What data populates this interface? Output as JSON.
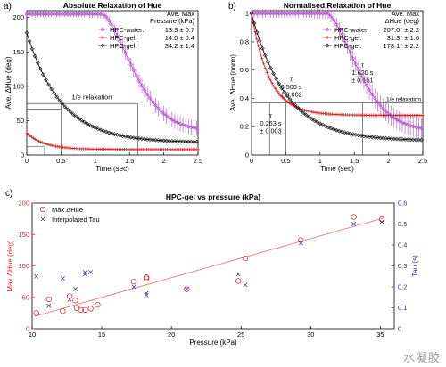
{
  "watermark": "水凝胶",
  "colors": {
    "water": "#b24bcc",
    "gel1": "#e02020",
    "gel2": "#111111",
    "tau_blue": "#2e2ea8",
    "fit_red": "#f07a7a"
  },
  "chart_data": [
    {
      "panel": "a)",
      "type": "line",
      "title": "Absolute Relaxation of Hue",
      "xlabel": "Time (sec)",
      "ylabel": "Ave. ΔHue (deg)",
      "xlim": [
        0,
        2.5
      ],
      "ylim": [
        0,
        210
      ],
      "xticks": [
        0,
        0.5,
        1,
        1.5,
        2,
        2.5
      ],
      "yticks": [
        0,
        50,
        100,
        150,
        200
      ],
      "legend_header": [
        "Ave. Max",
        "Pressure (kPa)"
      ],
      "annotation": "1/e relaxation",
      "legend_position": "top-right",
      "series": [
        {
          "name": "HPC-water:",
          "legend_value": "13.3 ± 0.7",
          "color": "#b24bcc",
          "marker": "diamond",
          "start": 205,
          "amp": 170,
          "floor": 35,
          "delay": 1.1,
          "tau": 0.6,
          "err": 8
        },
        {
          "name": "HPC-gel:",
          "legend_value": "14.0 ± 0.4",
          "color": "#e02020",
          "marker": "plus",
          "start": 32,
          "amp": 24,
          "floor": 8,
          "delay": 0,
          "tau": 0.26,
          "err": 1.5
        },
        {
          "name": "HPC-gel:",
          "legend_value": "34.2 ± 1.4",
          "color": "#111111",
          "marker": "diamond",
          "start": 178,
          "amp": 160,
          "floor": 18,
          "delay": 0,
          "tau": 0.5,
          "err": 3
        }
      ],
      "guides": {
        "one_over_e_y": [
          75,
          67,
          12
        ],
        "taus": [
          0.5,
          1.62
        ]
      }
    },
    {
      "panel": "b)",
      "type": "line",
      "title": "Normalised Relaxation of Hue",
      "xlabel": "Time (sec)",
      "ylabel": "Ave. ΔHue (norm)",
      "xlim": [
        0,
        2.5
      ],
      "ylim": [
        0,
        1.02
      ],
      "xticks": [
        0,
        0.5,
        1,
        1.5,
        2,
        2.5
      ],
      "yticks": [
        0,
        0.2,
        0.4,
        0.6,
        0.8,
        1
      ],
      "legend_header": [
        "Ave. Max",
        "ΔHue (deg)"
      ],
      "annotation": "1/e relaxation",
      "legend_position": "top-right",
      "series": [
        {
          "name": "HPC-water:",
          "legend_value": "207.0° ± 2.2",
          "color": "#b24bcc",
          "marker": "diamond",
          "start": 1,
          "amp": 0.83,
          "floor": 0.17,
          "delay": 1.1,
          "tau": 0.6,
          "err": 0.05
        },
        {
          "name": "HPC-gel:",
          "legend_value": "31.3° ± 1.6",
          "color": "#e02020",
          "marker": "plus",
          "start": 1,
          "amp": 0.72,
          "floor": 0.28,
          "delay": 0,
          "tau": 0.26,
          "err": 0.04
        },
        {
          "name": "HPC-gel:",
          "legend_value": "178.1° ± 2.2",
          "color": "#111111",
          "marker": "diamond",
          "start": 1,
          "amp": 0.9,
          "floor": 0.1,
          "delay": 0,
          "tau": 0.5,
          "err": 0.02
        }
      ],
      "tau_labels": [
        {
          "text": [
            "τ",
            "0.263 s",
            "± 0.003"
          ],
          "tau": 0.263
        },
        {
          "text": [
            "τ",
            "0.500 s",
            "± 0.002"
          ],
          "tau": 0.5
        },
        {
          "text": [
            "τ",
            "1.620 s",
            "± 0.161"
          ],
          "tau": 1.62
        }
      ],
      "one_over_e": 0.368
    },
    {
      "panel": "c)",
      "type": "scatter",
      "title": "HPC-gel vs pressure (kPa)",
      "xlabel": "Pressure (kPa)",
      "ylabel_left": "Max ΔHue (deg)",
      "ylabel_right": "Tau (s)",
      "xlim": [
        10,
        36
      ],
      "ylim_left": [
        0,
        200
      ],
      "ylim_right": [
        0,
        0.6
      ],
      "xticks": [
        10,
        15,
        20,
        25,
        30,
        35
      ],
      "yticks_left": [
        0,
        50,
        100,
        150,
        200
      ],
      "yticks_right": [
        0,
        0.1,
        0.2,
        0.3,
        0.4,
        0.5,
        0.6
      ],
      "legend_position": "top-left",
      "fit_line": {
        "x": [
          10.2,
          35.2
        ],
        "y": [
          20,
          176
        ]
      },
      "series": [
        {
          "name": "Max ΔHue",
          "axis": "left",
          "marker": "circle",
          "color": "#e02020",
          "points": [
            [
              10.3,
              25
            ],
            [
              11.2,
              47
            ],
            [
              12.2,
              28
            ],
            [
              12.7,
              52
            ],
            [
              13.1,
              45
            ],
            [
              13.2,
              33
            ],
            [
              13.5,
              30
            ],
            [
              13.8,
              30
            ],
            [
              14.2,
              32
            ],
            [
              14.7,
              38
            ],
            [
              17.3,
              75
            ],
            [
              18.2,
              80
            ],
            [
              18.2,
              82
            ],
            [
              21.1,
              63
            ],
            [
              24.8,
              76
            ],
            [
              25.3,
              112
            ],
            [
              29.3,
              141
            ],
            [
              33.1,
              178
            ],
            [
              35.1,
              174
            ]
          ]
        },
        {
          "name": "Interpolated Tau",
          "axis": "right",
          "marker": "x",
          "color": "#2e2ea8",
          "points": [
            [
              10.3,
              0.25
            ],
            [
              11.2,
              0.11
            ],
            [
              12.2,
              0.24
            ],
            [
              12.7,
              0.14
            ],
            [
              13.1,
              0.19
            ],
            [
              13.8,
              0.27
            ],
            [
              13.8,
              0.26
            ],
            [
              14.2,
              0.27
            ],
            [
              17.3,
              0.2
            ],
            [
              18.2,
              0.16
            ],
            [
              18.2,
              0.17
            ],
            [
              21.1,
              0.19
            ],
            [
              24.8,
              0.26
            ],
            [
              25.3,
              0.21
            ],
            [
              29.3,
              0.41
            ],
            [
              33.1,
              0.5
            ],
            [
              35.1,
              0.51
            ]
          ]
        }
      ]
    }
  ]
}
